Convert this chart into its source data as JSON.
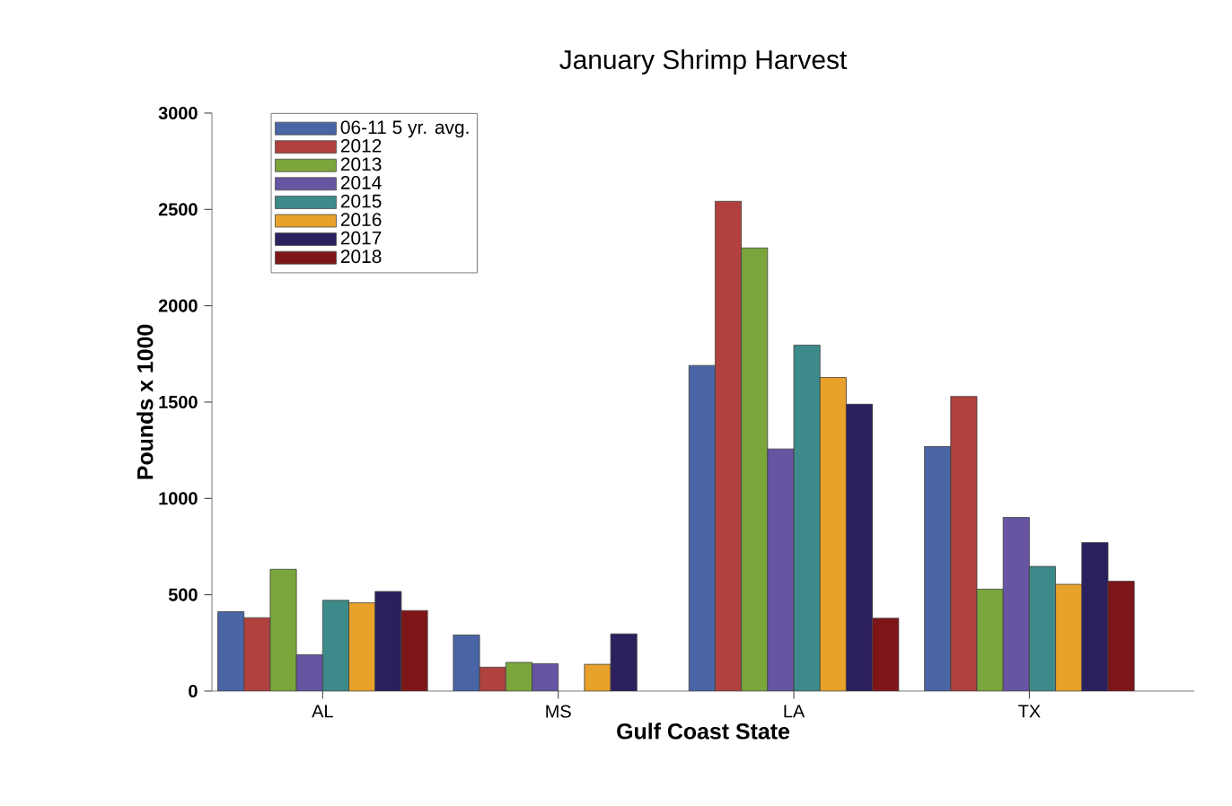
{
  "chart_data": {
    "type": "bar",
    "title": "January Shrimp Harvest",
    "xlabel": "Gulf Coast State",
    "ylabel": "Pounds x 1000",
    "categories": [
      "AL",
      "MS",
      "LA",
      "TX"
    ],
    "series": [
      {
        "name": "06-11 5 yr. avg.",
        "color": "#4a65a5",
        "values": [
          412,
          291,
          1690,
          1269
        ]
      },
      {
        "name": "2012",
        "color": "#b0413e",
        "values": [
          381,
          124,
          2542,
          1529
        ]
      },
      {
        "name": "2013",
        "color": "#7ba63c",
        "values": [
          632,
          149,
          2300,
          529
        ]
      },
      {
        "name": "2014",
        "color": "#6754a3",
        "values": [
          189,
          142,
          1257,
          901
        ]
      },
      {
        "name": "2015",
        "color": "#3d8a8a",
        "values": [
          471,
          null,
          1796,
          647
        ]
      },
      {
        "name": "2016",
        "color": "#e8a12b",
        "values": [
          458,
          139,
          1628,
          554
        ]
      },
      {
        "name": "2017",
        "color": "#2c1f5e",
        "values": [
          517,
          297,
          1489,
          771
        ]
      },
      {
        "name": "2018",
        "color": "#7e1518",
        "values": [
          418,
          null,
          378,
          570
        ]
      }
    ],
    "ylim": [
      0,
      3000
    ],
    "yticks": [
      0,
      500,
      1000,
      1500,
      2000,
      2500,
      3000
    ],
    "grid": false,
    "legend": "top left"
  }
}
